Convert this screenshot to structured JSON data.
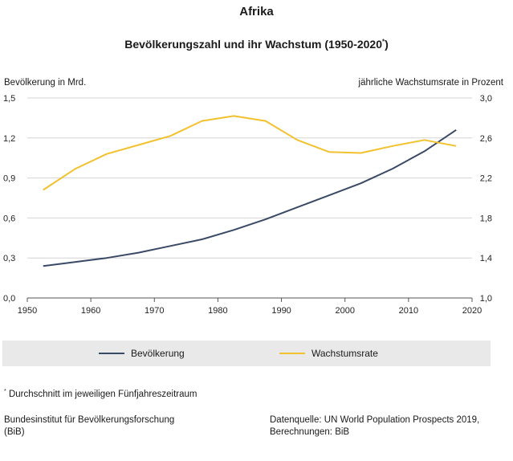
{
  "region": "Afrika",
  "title": "Bevölkerungszahl und ihr Wachstum (1950-2020",
  "title_sup": "*",
  "title_end": ")",
  "left_axis_label": "Bevölkerung in Mrd.",
  "right_axis_label": "jährliche Wachstumsrate in Prozent",
  "legend": [
    {
      "label": "Bevölkerung",
      "color": "#3a4a66"
    },
    {
      "label": "Wachstumsrate",
      "color": "#f2c12e"
    }
  ],
  "footnote_sup": "*",
  "footnote": "Durchschnitt im jeweiligen Fünfjahreszeitraum",
  "source_left": [
    "Bundesinstitut für Bevölkerungsforschung",
    "(BiB)"
  ],
  "source_right": [
    "Datenquelle: UN World Population Prospects 2019,",
    "Berechnungen: BiB"
  ],
  "chart_data": {
    "type": "line",
    "x": [
      1952.5,
      1957.5,
      1962.5,
      1967.5,
      1972.5,
      1977.5,
      1982.5,
      1987.5,
      1992.5,
      1997.5,
      2002.5,
      2007.5,
      2012.5,
      2017.5
    ],
    "xlim": [
      1950,
      2020
    ],
    "x_ticks": [
      "1950",
      "1960",
      "1970",
      "1980",
      "1990",
      "2000",
      "2010",
      "2020"
    ],
    "y_left_ticks": [
      "0,0",
      "0,3",
      "0,6",
      "0,9",
      "1,2",
      "1,5"
    ],
    "y_right_ticks": [
      "1,0",
      "1,4",
      "1,8",
      "2,2",
      "2,6",
      "3,0"
    ],
    "ylim_left": [
      0,
      1.5
    ],
    "ylim_right": [
      1.0,
      3.0
    ],
    "grid": "horizontal",
    "series": [
      {
        "name": "Bevölkerung",
        "axis": "left",
        "color": "#3a4a66",
        "values": [
          0.24,
          0.27,
          0.3,
          0.34,
          0.39,
          0.44,
          0.51,
          0.59,
          0.68,
          0.77,
          0.86,
          0.97,
          1.1,
          1.26
        ]
      },
      {
        "name": "Wachstumsrate",
        "axis": "right",
        "color": "#f2c12e",
        "values": [
          2.08,
          2.29,
          2.44,
          2.53,
          2.62,
          2.77,
          2.82,
          2.77,
          2.58,
          2.46,
          2.45,
          2.52,
          2.58,
          2.52
        ]
      }
    ]
  }
}
